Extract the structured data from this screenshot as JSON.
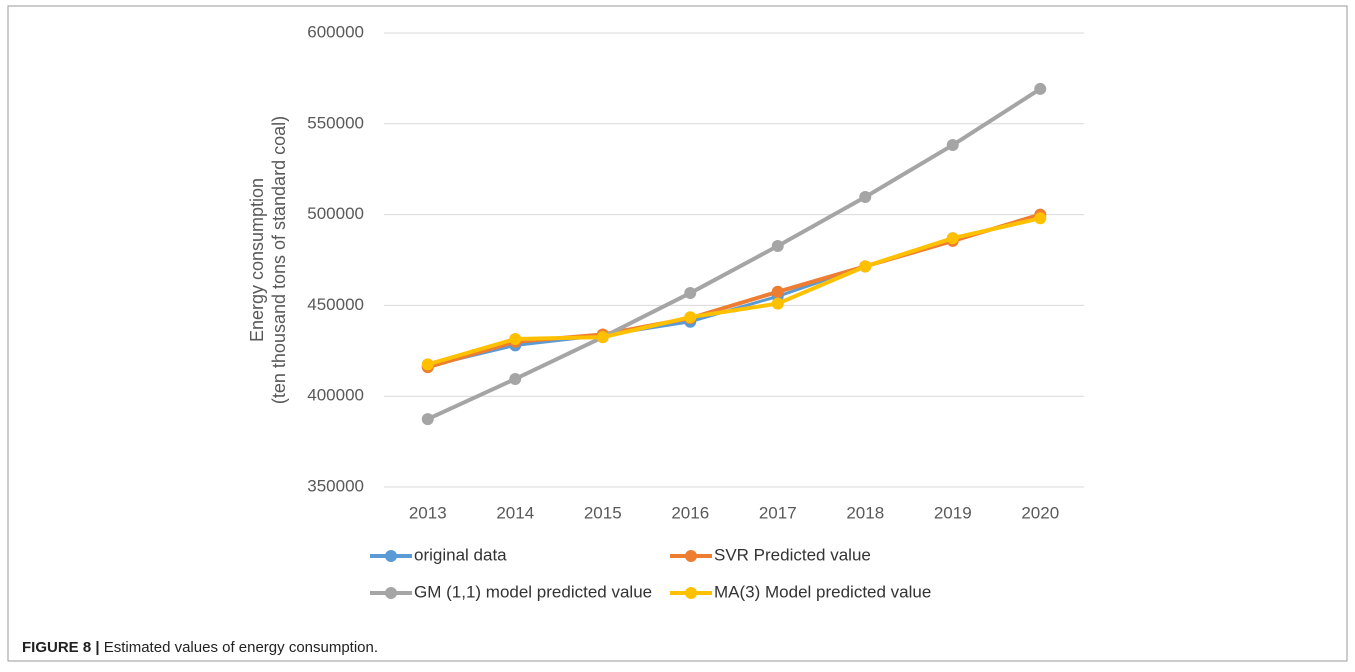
{
  "chart_data": {
    "type": "line",
    "ylabel": [
      "Energy consumption",
      "(ten thousand tons of standard coal)"
    ],
    "categories": [
      "2013",
      "2014",
      "2015",
      "2016",
      "2017",
      "2018",
      "2019",
      "2020"
    ],
    "series": [
      {
        "name": "original data",
        "color": "#5b9bd5",
        "values": [
          416500,
          428000,
          433500,
          441000,
          455000,
          471500,
          487000,
          498500
        ]
      },
      {
        "name": "SVR Predicted value",
        "color": "#ed7d31",
        "values": [
          416000,
          430000,
          434000,
          443000,
          457500,
          471500,
          485500,
          500000
        ]
      },
      {
        "name": "GM (1,1) model predicted value",
        "color": "#a5a5a5",
        "values": [
          387400,
          409500,
          432500,
          456800,
          482700,
          509700,
          538300,
          569200
        ]
      },
      {
        "name": "MA(3) Model predicted value",
        "color": "#ffc000",
        "values": [
          417500,
          431500,
          432500,
          443500,
          451000,
          471500,
          487000,
          498000
        ]
      }
    ],
    "ylim": [
      350000,
      600000
    ],
    "yticks": [
      350000,
      400000,
      450000,
      500000,
      550000,
      600000
    ],
    "grid": true
  },
  "figure_label": "FIGURE 8 |",
  "caption": "Estimated values of energy consumption."
}
